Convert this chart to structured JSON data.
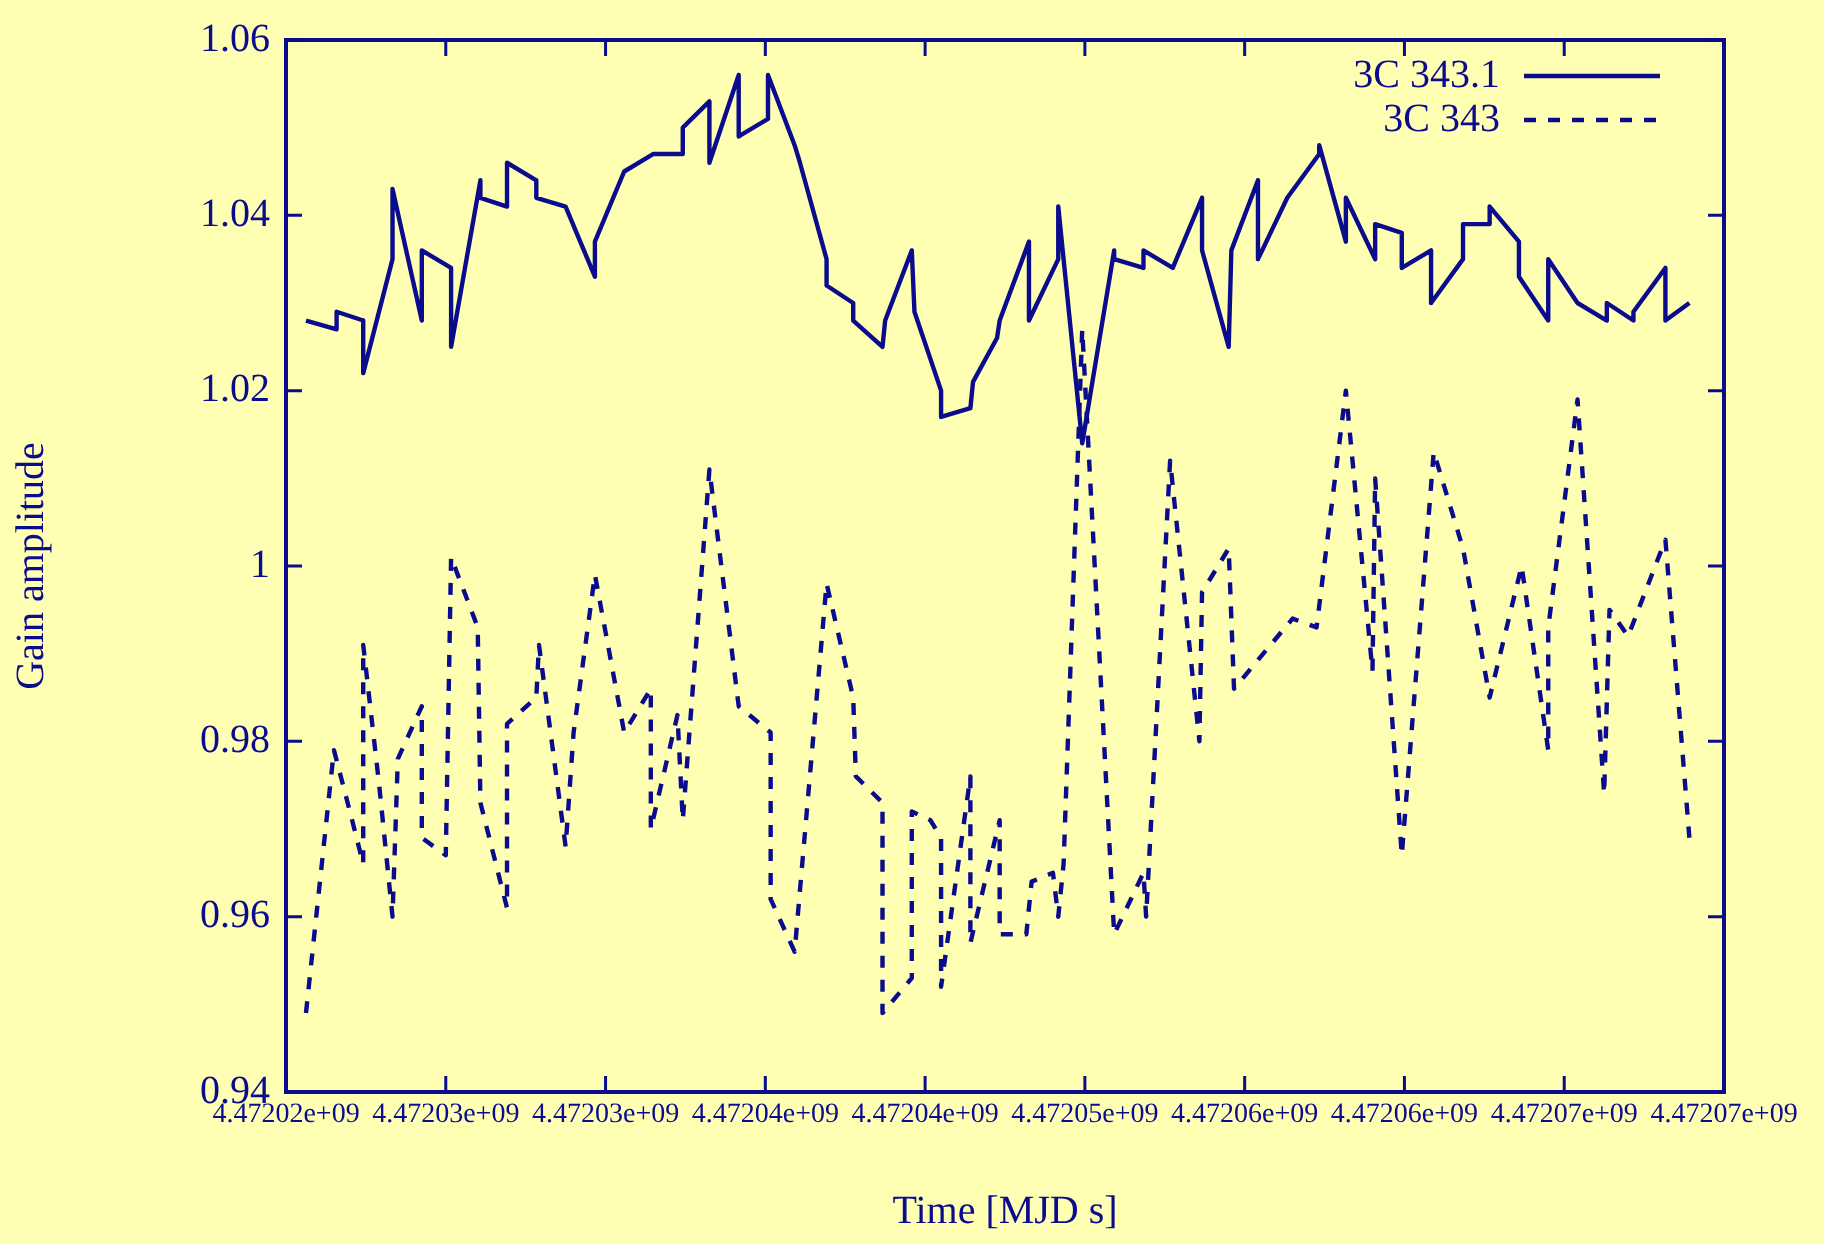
{
  "chart_data": {
    "type": "line",
    "xlabel": "Time [MJD s]",
    "ylabel": "Gain amplitude",
    "legend": "top right",
    "xlim": [
      4472020000,
      4472074000
    ],
    "xticks": [
      {
        "value": 4472020000,
        "label": "4.47202e+09"
      },
      {
        "value": 4472026000,
        "label": "4.47203e+09"
      },
      {
        "value": 4472032000,
        "label": "4.47203e+09"
      },
      {
        "value": 4472038000,
        "label": "4.47204e+09"
      },
      {
        "value": 4472044000,
        "label": "4.47204e+09"
      },
      {
        "value": 4472050000,
        "label": "4.47205e+09"
      },
      {
        "value": 4472056000,
        "label": "4.47206e+09"
      },
      {
        "value": 4472062000,
        "label": "4.47206e+09"
      },
      {
        "value": 4472068000,
        "label": "4.47207e+09"
      },
      {
        "value": 4472074000,
        "label": "4.47207e+09"
      }
    ],
    "ylim": [
      0.94,
      1.06
    ],
    "yticks": [
      0.94,
      0.96,
      0.98,
      {
        "value": 1,
        "label": "1"
      },
      1.02,
      1.04,
      1.06
    ],
    "series": [
      {
        "name": "3C 343.1",
        "color": "#0b0b8e",
        "line_style": "solid",
        "x": [
          4472020750,
          4472021900,
          4472021900,
          4472022900,
          4472022900,
          4472024000,
          4472024000,
          4472025100,
          4472025100,
          4472026200,
          4472026200,
          4472027300,
          4472027300,
          4472028300,
          4472028300,
          4472029400,
          4472029400,
          4472030500,
          4472031600,
          4472031600,
          4472032700,
          4472033800,
          4472034900,
          4472034900,
          4472035900,
          4472035900,
          4472037000,
          4472037000,
          4472038100,
          4472038100,
          4472039100,
          4472039300,
          4472040300,
          4472040300,
          4472041300,
          4472041300,
          4472042400,
          4472042500,
          4472043500,
          4472043600,
          4472044600,
          4472044600,
          4472045700,
          4472045800,
          4472046700,
          4472046800,
          4472047900,
          4472047900,
          4472049000,
          4472049000,
          4472049900,
          4472051100,
          4472051100,
          4472052200,
          4472052200,
          4472053300,
          4472054400,
          4472054400,
          4472055400,
          4472055500,
          4472056500,
          4472056500,
          4472057600,
          4472058800,
          4472058800,
          4472059800,
          4472059800,
          4472060900,
          4472060900,
          4472061900,
          4472061900,
          4472063000,
          4472063000,
          4472064200,
          4472064200,
          4472065200,
          4472065200,
          4472066300,
          4472066300,
          4472067400,
          4472067400,
          4472068500,
          4472069600,
          4472069600,
          4472070600,
          4472070600,
          4472071800,
          4472071800,
          4472072700
        ],
        "values": [
          1.028,
          1.027,
          1.029,
          1.028,
          1.022,
          1.035,
          1.043,
          1.028,
          1.036,
          1.034,
          1.025,
          1.044,
          1.042,
          1.041,
          1.046,
          1.044,
          1.042,
          1.041,
          1.033,
          1.037,
          1.045,
          1.047,
          1.047,
          1.05,
          1.053,
          1.046,
          1.056,
          1.049,
          1.051,
          1.056,
          1.048,
          1.046,
          1.035,
          1.032,
          1.03,
          1.028,
          1.025,
          1.028,
          1.036,
          1.029,
          1.02,
          1.017,
          1.018,
          1.021,
          1.026,
          1.028,
          1.037,
          1.028,
          1.035,
          1.041,
          1.014,
          1.036,
          1.035,
          1.034,
          1.036,
          1.034,
          1.042,
          1.036,
          1.025,
          1.036,
          1.044,
          1.035,
          1.042,
          1.047,
          1.048,
          1.037,
          1.042,
          1.035,
          1.039,
          1.038,
          1.034,
          1.036,
          1.03,
          1.035,
          1.039,
          1.039,
          1.041,
          1.037,
          1.033,
          1.028,
          1.035,
          1.03,
          1.028,
          1.03,
          1.028,
          1.029,
          1.034,
          1.028,
          1.03
        ]
      },
      {
        "name": "3C 343",
        "color": "#0b0b8e",
        "line_style": "dashed",
        "x": [
          4472020750,
          4472021800,
          4472022400,
          4472022900,
          4472022900,
          4472023500,
          4472024000,
          4472024200,
          4472025100,
          4472025100,
          4472026000,
          4472026200,
          4472027200,
          4472027300,
          4472028300,
          4472028300,
          4472029400,
          4472029500,
          4472030500,
          4472030800,
          4472031600,
          4472032700,
          4472033700,
          4472033700,
          4472034700,
          4472034900,
          4472035900,
          4472037000,
          4472038200,
          4472038200,
          4472039100,
          4472040300,
          4472041300,
          4472041400,
          4472042400,
          4472042400,
          4472043500,
          4472043500,
          4472044200,
          4472044600,
          4472044600,
          4472045700,
          4472045700,
          4472046800,
          4472046800,
          4472047800,
          4472048000,
          4472048800,
          4472049000,
          4472049200,
          4472049900,
          4472051100,
          4472052200,
          4472052300,
          4472053200,
          4472054300,
          4472054400,
          4472055400,
          4472055600,
          4472057800,
          4472058700,
          4472059800,
          4472060800,
          4472060900,
          4472061900,
          4472063100,
          4472064200,
          4472065200,
          4472066400,
          4472067400,
          4472067400,
          4472068500,
          4472069500,
          4472069700,
          4472070400,
          4472071800,
          4472072700
        ],
        "values": [
          0.949,
          0.979,
          0.972,
          0.966,
          0.991,
          0.975,
          0.96,
          0.978,
          0.984,
          0.969,
          0.967,
          1.001,
          0.993,
          0.973,
          0.961,
          0.982,
          0.985,
          0.991,
          0.968,
          0.981,
          0.999,
          0.981,
          0.986,
          0.97,
          0.983,
          0.971,
          1.011,
          0.984,
          0.981,
          0.962,
          0.956,
          0.998,
          0.985,
          0.976,
          0.973,
          0.949,
          0.953,
          0.972,
          0.971,
          0.969,
          0.952,
          0.976,
          0.957,
          0.971,
          0.958,
          0.958,
          0.964,
          0.965,
          0.96,
          0.966,
          1.027,
          0.958,
          0.965,
          0.96,
          1.012,
          0.98,
          0.997,
          1.002,
          0.986,
          0.994,
          0.993,
          1.02,
          0.988,
          1.01,
          0.967,
          1.013,
          1.002,
          0.985,
          1.0,
          0.979,
          0.993,
          1.019,
          0.974,
          0.995,
          0.992,
          1.003,
          0.969
        ]
      }
    ]
  }
}
